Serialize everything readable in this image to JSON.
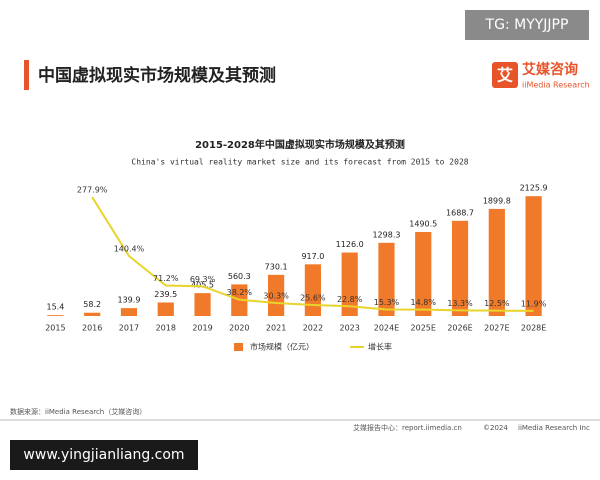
{
  "watermark_top": "TG: MYYJJPP",
  "header": {
    "title": "中国虚拟现实市场规模及其预测",
    "logo_cn": "艾媒咨询",
    "logo_en": "iiMedia Research",
    "logo_mark": "艾"
  },
  "chart_data": {
    "type": "bar",
    "title": "2015-2028年中国虚拟现实市场规模及其预测",
    "subtitle": "China's virtual reality market size and its forecast from 2015 to 2028",
    "categories": [
      "2015",
      "2016",
      "2017",
      "2018",
      "2019",
      "2020",
      "2021",
      "2022",
      "2023",
      "2024E",
      "2025E",
      "2026E",
      "2027E",
      "2028E"
    ],
    "series": [
      {
        "name": "市场规模（亿元）",
        "type": "bar",
        "color": "#f07a2a",
        "values": [
          15.4,
          58.2,
          139.9,
          239.5,
          405.5,
          560.3,
          730.1,
          917.0,
          1126.0,
          1298.3,
          1490.5,
          1688.7,
          1899.8,
          2125.9
        ],
        "value_labels": [
          "15.4",
          "58.2",
          "139.9",
          "239.5",
          "405.5",
          "560.3",
          "730.1",
          "917.0",
          "1126.0",
          "1298.3",
          "1490.5",
          "1688.7",
          "1899.8",
          "2125.9"
        ]
      },
      {
        "name": "增长率",
        "type": "line",
        "axis": "y2",
        "color": "#e8d42a",
        "values": [
          null,
          277.9,
          140.4,
          71.2,
          69.3,
          38.2,
          30.3,
          25.6,
          22.8,
          15.3,
          14.8,
          13.3,
          12.5,
          11.9
        ],
        "value_labels": [
          null,
          "277.9%",
          "140.4%",
          "71.2%",
          "69.3%",
          "38.2%",
          "30.3%",
          "25.6%",
          "22.8%",
          "15.3%",
          "14.8%",
          "13.3%",
          "12.5%",
          "11.9%"
        ]
      }
    ],
    "ylim": [
      0,
      2200
    ],
    "y2lim": [
      0,
      290
    ],
    "legend": "bottom"
  },
  "footer": {
    "source": "数据来源：iiMedia Research（艾媒咨询）",
    "center": "艾媒报告中心：report.iimedia.cn",
    "copyright": "©2024",
    "company": "iiMedia Research Inc"
  },
  "watermark_bottom": "www.yingjianliang.com"
}
